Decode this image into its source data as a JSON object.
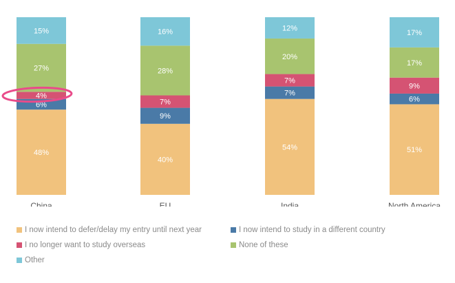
{
  "chart_data": {
    "type": "bar",
    "stacked": true,
    "categories": [
      "China",
      "EU",
      "India",
      "North America"
    ],
    "series": [
      {
        "name": "I now intend to defer/delay my entry until next year",
        "color": "#f1c27d",
        "values": [
          48,
          40,
          54,
          51
        ]
      },
      {
        "name": "I now intend to study in a different country",
        "color": "#4a7aa7",
        "values": [
          6,
          9,
          7,
          6
        ]
      },
      {
        "name": "I no longer want to study overseas",
        "color": "#d55373",
        "values": [
          4,
          7,
          7,
          9
        ]
      },
      {
        "name": "None of these",
        "color": "#a8c46f",
        "values": [
          27,
          28,
          20,
          17
        ]
      },
      {
        "name": "Other",
        "color": "#7ec7d8",
        "values": [
          15,
          16,
          12,
          17
        ]
      }
    ],
    "value_suffix": "%",
    "ylim": [
      0,
      100
    ],
    "grid": false,
    "legend_position": "bottom",
    "annotation": {
      "type": "ellipse-highlight",
      "category": "China",
      "series": "I no longer want to study overseas",
      "color": "#e94b8a"
    }
  }
}
